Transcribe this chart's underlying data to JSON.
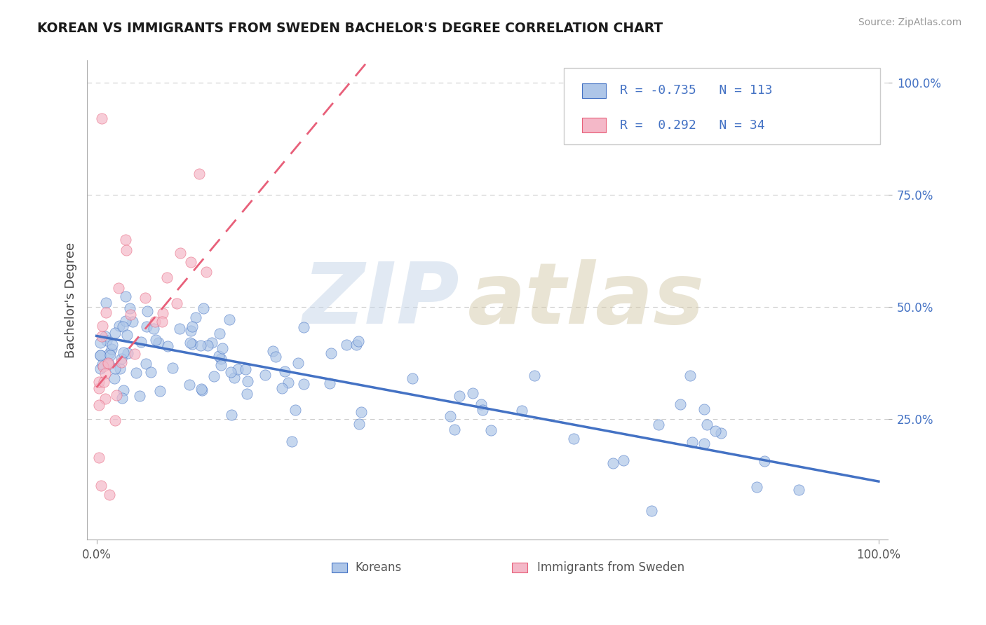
{
  "title": "KOREAN VS IMMIGRANTS FROM SWEDEN BACHELOR'S DEGREE CORRELATION CHART",
  "source_text": "Source: ZipAtlas.com",
  "ylabel": "Bachelor's Degree",
  "r_korean": -0.735,
  "n_korean": 113,
  "r_sweden": 0.292,
  "n_sweden": 34,
  "blue_color": "#4472c4",
  "pink_color": "#e8607a",
  "blue_fill": "#aec6e8",
  "pink_fill": "#f4b8c8",
  "watermark_zip_color": "#c5d5e8",
  "watermark_atlas_color": "#d4caaa",
  "background_color": "#ffffff",
  "grid_color": "#cccccc",
  "title_color": "#1a1a1a",
  "source_color": "#999999",
  "tick_color_x": "#555555",
  "tick_color_y": "#4472c4",
  "legend_text_color": "#4472c4",
  "dot_size": 120
}
